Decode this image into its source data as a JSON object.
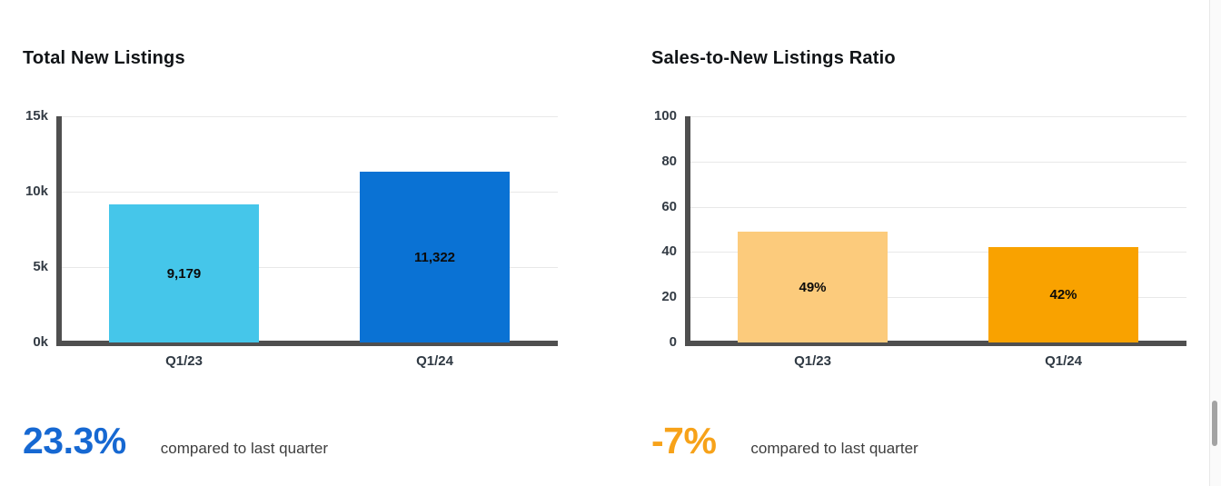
{
  "chart_data": [
    {
      "type": "bar",
      "title": "Total New Listings",
      "categories": [
        "Q1/23",
        "Q1/24"
      ],
      "values": [
        9179,
        11322
      ],
      "value_labels": [
        "9,179",
        "11,322"
      ],
      "ylim": [
        0,
        15000
      ],
      "ytick_values": [
        0,
        5000,
        10000,
        15000
      ],
      "ytick_labels": [
        "0k",
        "5k",
        "10k",
        "15k"
      ],
      "bar_colors": [
        "#45c6ea",
        "#0a72d4"
      ],
      "grid": true,
      "legend": "none",
      "kpi_value": "23.3%",
      "kpi_caption": "compared to last quarter",
      "kpi_color": "#1668d2"
    },
    {
      "type": "bar",
      "title": "Sales-to-New Listings Ratio",
      "categories": [
        "Q1/23",
        "Q1/24"
      ],
      "values": [
        49,
        42
      ],
      "value_labels": [
        "49%",
        "42%"
      ],
      "ylim": [
        0,
        100
      ],
      "ytick_values": [
        0,
        20,
        40,
        60,
        80,
        100
      ],
      "ytick_labels": [
        "0",
        "20",
        "40",
        "60",
        "80",
        "100"
      ],
      "bar_colors": [
        "#fccb7c",
        "#f9a200"
      ],
      "grid": true,
      "legend": "none",
      "kpi_value": "-7%",
      "kpi_caption": "compared to last quarter",
      "kpi_color": "#f7a219"
    }
  ]
}
